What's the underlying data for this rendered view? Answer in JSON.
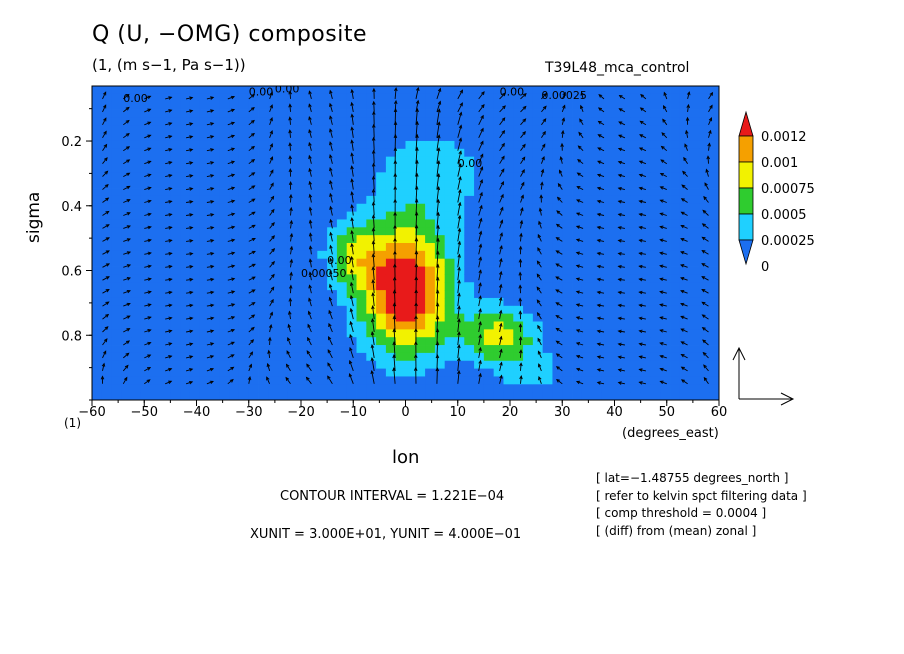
{
  "header": {
    "title": "Q (U, −OMG) composite",
    "units": "(1, (m s−1, Pa s−1))",
    "run_name": "T39L48_mca_control"
  },
  "footer": {
    "contour_interval": "CONTOUR INTERVAL = 1.221E−04",
    "xy_unit": "XUNIT = 3.000E+01, YUNIT = 4.000E−01",
    "info_lines": [
      "[ lat=−1.48755 degrees_north ]",
      "[ refer to kelvin spct filtering data ]",
      "[ comp threshold = 0.0004 ]",
      "[ (diff) from (mean) zonal ]"
    ]
  },
  "chart_data": {
    "type": "heatmap",
    "title": "Q (U, −OMG) composite",
    "xlabel": "lon",
    "x_unit_label": "(degrees_east)",
    "ylabel": "sigma",
    "y_unit_label": "(1)",
    "xlim": [
      -60,
      60
    ],
    "ylim": [
      1.0,
      0.03
    ],
    "x_ticks": [
      -60,
      -50,
      -40,
      -30,
      -20,
      -10,
      0,
      10,
      20,
      30,
      40,
      50,
      60
    ],
    "y_ticks": [
      0.2,
      0.4,
      0.6,
      0.8
    ],
    "colorbar": {
      "levels": [
        "0",
        "0.00025",
        "0.0005",
        "0.00075",
        "0.001",
        "0.0012"
      ],
      "colors": [
        "#1c6ff0",
        "#1fd0ff",
        "#2fcc2f",
        "#f2f200",
        "#f5a000",
        "#e81a1a"
      ],
      "extends": "both"
    },
    "contour_labels": [
      "0.00",
      "0.00",
      "0.00",
      "0.00",
      "0.00025",
      "0.00050",
      "0.00",
      "0.00"
    ],
    "field_maxima": [
      {
        "lon": 0,
        "sigma": 0.62,
        "value": 0.0014
      },
      {
        "lon": 18,
        "sigma": 0.8,
        "value": 0.001
      }
    ],
    "vector_reference": {
      "u": 30,
      "omg": 0.4
    },
    "grid": false
  }
}
